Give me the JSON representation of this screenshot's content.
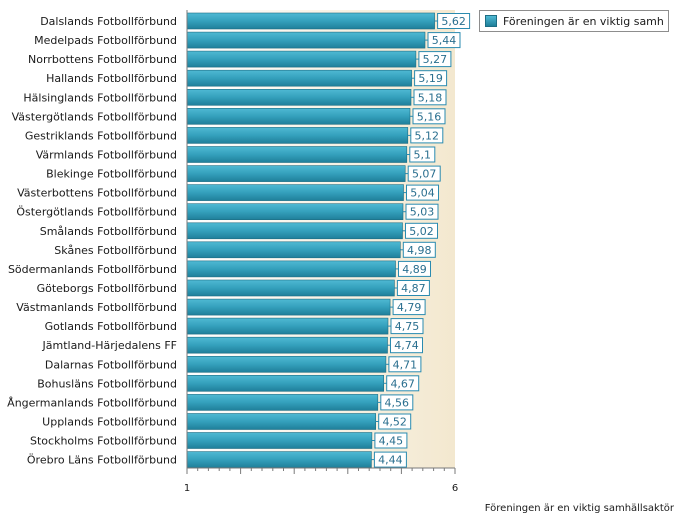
{
  "chart_data": {
    "type": "bar",
    "orientation": "horizontal",
    "title": "",
    "categories": [
      "Dalslands Fotbollförbund",
      "Medelpads Fotbollförbund",
      "Norrbottens Fotbollförbund",
      "Hallands Fotbollförbund",
      "Hälsinglands Fotbollförbund",
      "Västergötlands Fotbollförbund",
      "Gestriklands Fotbollförbund",
      "Värmlands Fotbollförbund",
      "Blekinge Fotbollförbund",
      "Västerbottens Fotbollförbund",
      "Östergötlands Fotbollförbund",
      "Smålands Fotbollförbund",
      "Skånes Fotbollförbund",
      "Södermanlands Fotbollförbund",
      "Göteborgs Fotbollförbund",
      "Västmanlands Fotbollförbund",
      "Gotlands Fotbollförbund",
      "Jämtland-Härjedalens FF",
      "Dalarnas Fotbollförbund",
      "Bohusläns Fotbollförbund",
      "Ångermanlands Fotbollförbund",
      "Upplands Fotbollförbund",
      "Stockholms Fotbollförbund",
      "Örebro Läns Fotbollförbund"
    ],
    "series": [
      {
        "name": "Föreningen är en viktig samh",
        "values": [
          5.62,
          5.44,
          5.27,
          5.19,
          5.18,
          5.16,
          5.12,
          5.1,
          5.07,
          5.04,
          5.03,
          5.02,
          4.98,
          4.89,
          4.87,
          4.79,
          4.75,
          4.74,
          4.71,
          4.67,
          4.56,
          4.52,
          4.45,
          4.44
        ],
        "value_labels": [
          "5,62",
          "5,44",
          "5,27",
          "5,19",
          "5,18",
          "5,16",
          "5,12",
          "5,1",
          "5,07",
          "5,04",
          "5,03",
          "5,02",
          "4,98",
          "4,89",
          "4,87",
          "4,79",
          "4,75",
          "4,74",
          "4,71",
          "4,67",
          "4,56",
          "4,52",
          "4,45",
          "4,44"
        ]
      }
    ],
    "xlabel": "Föreningen är en viktig samhällsaktör",
    "ylabel": "",
    "xlim": [
      1,
      6
    ],
    "tick_labels": [
      "1",
      "6"
    ],
    "legend": "top-right",
    "colors": {
      "bar_top": "#4fb9d3",
      "bar_bottom": "#1f7f9a",
      "bar_edge": "#1d6d84",
      "plot_bg": "#f5ecd7",
      "label_border": "#2a8bb0",
      "label_text": "#2a6f8f"
    }
  }
}
